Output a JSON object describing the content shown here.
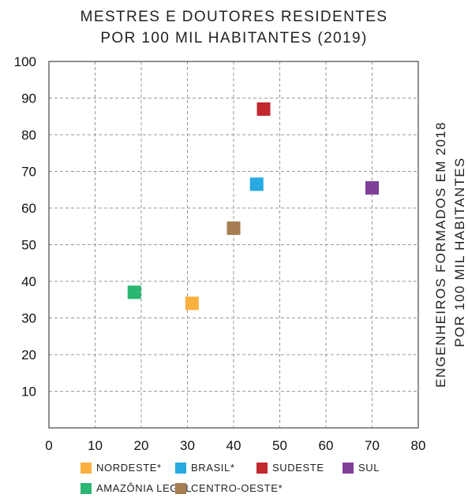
{
  "title_lines": [
    "MESTRES E DOUTORES RESIDENTES",
    "POR 100 MIL HABITANTES (2019)"
  ],
  "ylabel_lines": [
    "ENGENHEIROS FORMADOS EM 2018",
    "POR 100 MIL HABITANTES"
  ],
  "chart_data": {
    "type": "scatter",
    "title": "MESTRES E DOUTORES RESIDENTES POR 100 MIL HABITANTES (2019)",
    "xlabel": "",
    "ylabel": "ENGENHEIROS FORMADOS EM 2018 POR 100 MIL HABITANTES",
    "xlim": [
      0,
      80
    ],
    "ylim": [
      0,
      100
    ],
    "x_ticks": [
      0,
      10,
      20,
      30,
      40,
      50,
      60,
      70,
      80
    ],
    "y_ticks": [
      10,
      20,
      30,
      40,
      50,
      60,
      70,
      80,
      90,
      100
    ],
    "grid": true,
    "legend_position": "bottom",
    "series": [
      {
        "name": "NORDESTE*",
        "color": "#FBB040",
        "x": 31,
        "y": 34
      },
      {
        "name": "BRASIL*",
        "color": "#27AAE1",
        "x": 45,
        "y": 66.5
      },
      {
        "name": "SUDESTE",
        "color": "#C1272D",
        "x": 46.5,
        "y": 87
      },
      {
        "name": "SUL",
        "color": "#7F3F98",
        "x": 70,
        "y": 65.5
      },
      {
        "name": "AMAZÔNIA LEGAL",
        "color": "#2BB673",
        "x": 18.5,
        "y": 37
      },
      {
        "name": "CENTRO-OESTE*",
        "color": "#A67C52",
        "x": 40,
        "y": 54.5
      }
    ]
  }
}
